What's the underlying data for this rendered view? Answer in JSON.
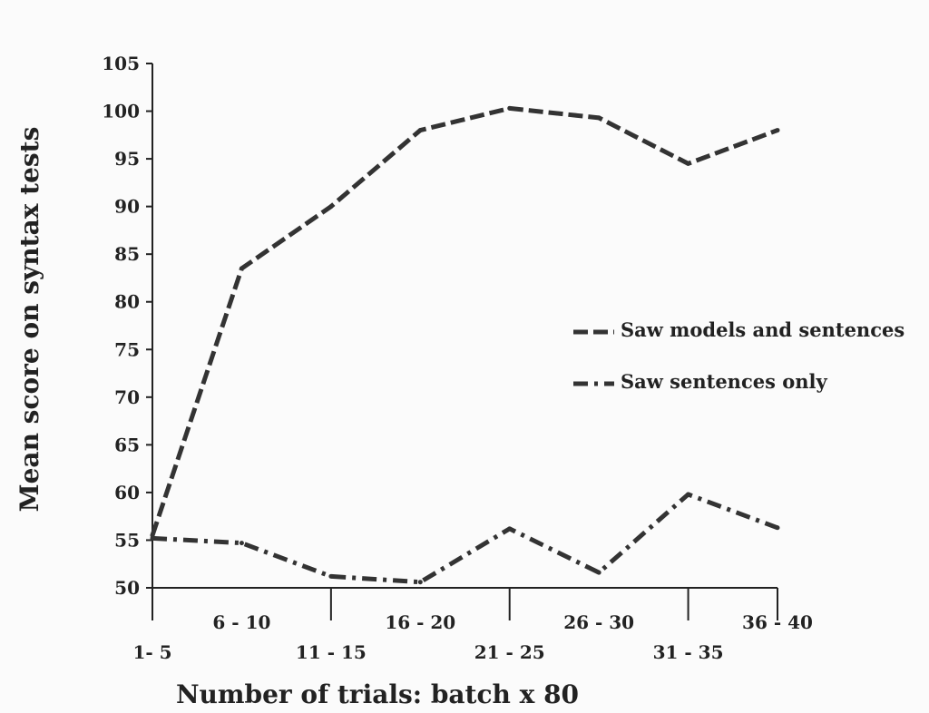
{
  "chart_data": {
    "type": "line",
    "title": "",
    "xlabel": "Number of trials: batch x 80",
    "ylabel": "Mean score on syntax tests",
    "categories": [
      "1- 5",
      "6 - 10",
      "11 - 15",
      "16 - 20",
      "21 - 25",
      "26 - 30",
      "31 - 35",
      "36 - 40"
    ],
    "ylim": [
      50,
      105
    ],
    "yticks": [
      50,
      55,
      60,
      65,
      70,
      75,
      80,
      85,
      90,
      95,
      100,
      105
    ],
    "grid": false,
    "legend_position": "right",
    "series": [
      {
        "name": "Saw models and sentences",
        "values": [
          55.5,
          83.5,
          90,
          98,
          100.3,
          99.3,
          94.5,
          98
        ],
        "style": "dashed",
        "color": "#333333"
      },
      {
        "name": "Saw sentences only",
        "values": [
          55.2,
          54.7,
          51.2,
          50.6,
          56.2,
          51.6,
          59.8,
          56.3
        ],
        "style": "dash-dot",
        "color": "#333333"
      }
    ]
  }
}
